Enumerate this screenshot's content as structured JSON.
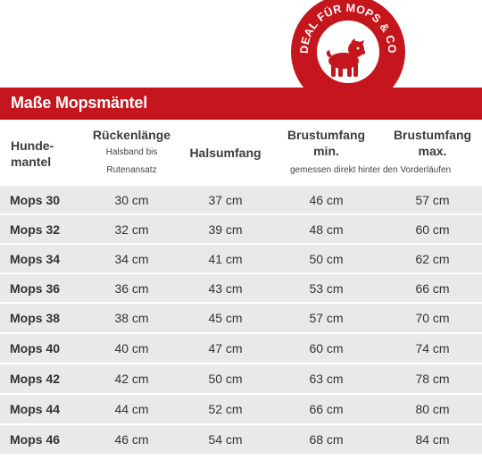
{
  "badge": {
    "text": "IDEAL FÜR MOPS & CO.",
    "color": "#c4161c"
  },
  "title": "Maße Mopsmäntel",
  "headers": {
    "col0_line1": "Hunde-",
    "col0_line2": "mantel",
    "col1_title": "Rückenlänge",
    "col1_sub1": "Halsband bis",
    "col1_sub2": "Rutenansatz",
    "col2_title": "Halsumfang",
    "col3_line1": "Brustumfang",
    "col3_line2": "min.",
    "col4_line1": "Brustumfang",
    "col4_line2": "max.",
    "brust_note": "gemessen direkt hinter den Vorderläufen"
  },
  "rows": [
    [
      "Mops 30",
      "30 cm",
      "37 cm",
      "46 cm",
      "57 cm"
    ],
    [
      "Mops 32",
      "32 cm",
      "39 cm",
      "48 cm",
      "60 cm"
    ],
    [
      "Mops 34",
      "34 cm",
      "41 cm",
      "50 cm",
      "62 cm"
    ],
    [
      "Mops 36",
      "36 cm",
      "43 cm",
      "53 cm",
      "66 cm"
    ],
    [
      "Mops 38",
      "38 cm",
      "45 cm",
      "57 cm",
      "70 cm"
    ],
    [
      "Mops 40",
      "40 cm",
      "47 cm",
      "60 cm",
      "74 cm"
    ],
    [
      "Mops 42",
      "42 cm",
      "50 cm",
      "63 cm",
      "78 cm"
    ],
    [
      "Mops 44",
      "44 cm",
      "52 cm",
      "66 cm",
      "80 cm"
    ],
    [
      "Mops 46",
      "46 cm",
      "54 cm",
      "68 cm",
      "84 cm"
    ]
  ]
}
